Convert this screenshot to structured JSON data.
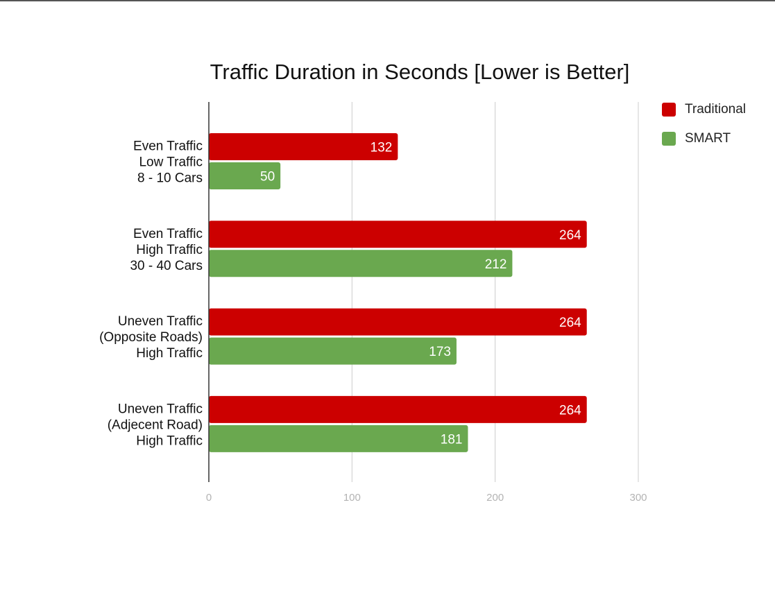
{
  "chart_data": {
    "type": "bar",
    "orientation": "horizontal",
    "title": "Traffic Duration in Seconds [Lower is Better]",
    "categories": [
      [
        "Even Traffic",
        "Low Traffic",
        "8 - 10 Cars"
      ],
      [
        "Even Traffic",
        "High Traffic",
        "30 - 40 Cars"
      ],
      [
        "Uneven Traffic",
        "(Opposite Roads)",
        "High Traffic"
      ],
      [
        "Uneven Traffic",
        "(Adjecent Road)",
        "High Traffic"
      ]
    ],
    "series": [
      {
        "name": "Traditional",
        "color": "#cc0000",
        "values": [
          132,
          264,
          264,
          264
        ]
      },
      {
        "name": "SMART",
        "color": "#6aa84f",
        "values": [
          50,
          212,
          173,
          181
        ]
      }
    ],
    "xlim": [
      0,
      300
    ],
    "xticks": [
      0,
      100,
      200,
      300
    ],
    "grid": true,
    "data_labels": true,
    "legend_position": "right"
  }
}
